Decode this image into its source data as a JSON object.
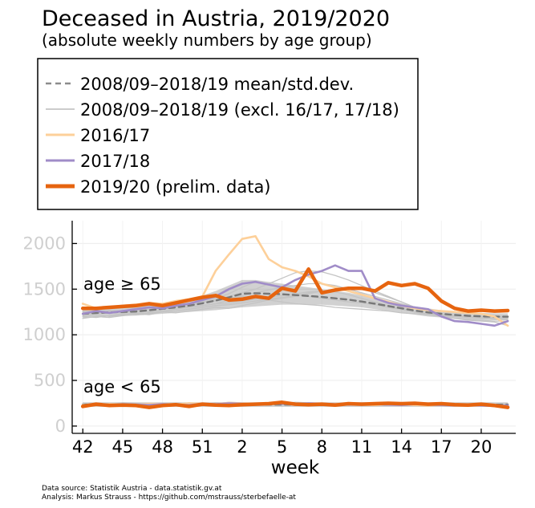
{
  "title": "Deceased in Austria, 2019/2020",
  "subtitle": "(absolute weekly numbers by age group)",
  "xlabel": "week",
  "annotations": {
    "old": "age ≥ 65",
    "young": "age < 65"
  },
  "caption": {
    "line1": "Data source: Statistik Austria - data.statistik.gv.at",
    "line2": "Analysis: Markus Strauss - https://github.com/mstrauss/sterbefaelle-at"
  },
  "legend": [
    {
      "label": "2008/09–2018/19 mean/std.dev.",
      "color": "#8c8c8c",
      "dashed": true,
      "width": 2.5
    },
    {
      "label": "2008/09–2018/19 (excl. 16/17, 17/18)",
      "color": "#cccccc",
      "dashed": false,
      "width": 2
    },
    {
      "label": "2016/17",
      "color": "#fdd09a",
      "dashed": false,
      "width": 3
    },
    {
      "label": "2017/18",
      "color": "#a08cc8",
      "dashed": false,
      "width": 3
    },
    {
      "label": "2019/20 (prelim. data)",
      "color": "#e6640f",
      "dashed": false,
      "width": 5
    }
  ],
  "chart_data": {
    "type": "line",
    "title": "Deceased in Austria, 2019/2020",
    "xlabel": "week",
    "ylabel": "",
    "xlim": [
      41.2,
      74.6
    ],
    "ylim": [
      -80,
      2250
    ],
    "x_tick_positions": [
      42,
      45,
      48,
      51,
      54,
      57,
      60,
      63,
      66,
      69,
      72
    ],
    "x_tick_labels": [
      "42",
      "45",
      "48",
      "51",
      "2",
      "5",
      "8",
      "11",
      "14",
      "17",
      "20"
    ],
    "y_ticks": [
      0,
      500,
      1000,
      1500,
      2000
    ],
    "grid": true,
    "legend_position": "top",
    "x": [
      42,
      43,
      44,
      45,
      46,
      47,
      48,
      49,
      50,
      51,
      52,
      53,
      54,
      55,
      56,
      57,
      58,
      59,
      60,
      61,
      62,
      63,
      64,
      65,
      66,
      67,
      68,
      69,
      70,
      71,
      72,
      73,
      74
    ],
    "band_old": {
      "lower": [
        1185,
        1195,
        1200,
        1205,
        1210,
        1220,
        1230,
        1240,
        1250,
        1260,
        1270,
        1285,
        1300,
        1310,
        1320,
        1330,
        1330,
        1330,
        1330,
        1320,
        1310,
        1300,
        1280,
        1260,
        1240,
        1220,
        1200,
        1190,
        1180,
        1170,
        1165,
        1160,
        1160
      ],
      "upper": [
        1275,
        1285,
        1290,
        1295,
        1305,
        1320,
        1340,
        1360,
        1390,
        1430,
        1480,
        1540,
        1600,
        1600,
        1580,
        1560,
        1540,
        1520,
        1500,
        1480,
        1460,
        1430,
        1400,
        1370,
        1340,
        1310,
        1290,
        1270,
        1255,
        1245,
        1240,
        1235,
        1235
      ]
    },
    "band_young": {
      "lower": [
        210,
        210,
        210,
        210,
        210,
        210,
        210,
        210,
        210,
        210,
        210,
        210,
        210,
        210,
        210,
        210,
        210,
        210,
        210,
        210,
        210,
        210,
        210,
        210,
        210,
        210,
        210,
        210,
        210,
        210,
        210,
        210,
        210
      ],
      "upper": [
        260,
        260,
        260,
        260,
        260,
        260,
        260,
        260,
        260,
        260,
        260,
        260,
        260,
        260,
        260,
        260,
        260,
        260,
        260,
        260,
        260,
        260,
        260,
        260,
        260,
        260,
        260,
        260,
        260,
        260,
        260,
        260,
        260
      ]
    },
    "series": [
      {
        "name": "2008/09–2018/19 mean/std.dev.",
        "group": "old",
        "style": "mean",
        "values": [
          1230,
          1240,
          1245,
          1250,
          1255,
          1270,
          1285,
          1300,
          1320,
          1345,
          1375,
          1410,
          1450,
          1455,
          1450,
          1445,
          1435,
          1425,
          1415,
          1400,
          1385,
          1365,
          1340,
          1315,
          1290,
          1265,
          1245,
          1230,
          1218,
          1208,
          1202,
          1198,
          1198
        ]
      },
      {
        "name": "2008/09–2018/19 mean/std.dev.",
        "group": "young",
        "style": "mean",
        "values": [
          235,
          235,
          235,
          235,
          235,
          235,
          235,
          235,
          235,
          235,
          235,
          235,
          235,
          235,
          235,
          235,
          235,
          235,
          235,
          235,
          235,
          235,
          235,
          235,
          235,
          235,
          235,
          235,
          235,
          235,
          235,
          235,
          235
        ]
      },
      {
        "name": "2008/09–2018/19 (excl. 16/17, 17/18)",
        "group": "old",
        "style": "year",
        "values": [
          1180,
          1200,
          1190,
          1210,
          1230,
          1220,
          1250,
          1240,
          1260,
          1280,
          1300,
          1290,
          1320,
          1350,
          1380,
          1400,
          1420,
          1450,
          1480,
          1500,
          1480,
          1450,
          1400,
          1350,
          1300,
          1250,
          1220,
          1200,
          1180,
          1170,
          1160,
          1150,
          1150
        ]
      },
      {
        "name": "2008/09–2018/19 (excl. 16/17, 17/18)",
        "group": "old",
        "style": "year",
        "values": [
          1260,
          1250,
          1270,
          1260,
          1280,
          1300,
          1290,
          1320,
          1340,
          1360,
          1380,
          1420,
          1460,
          1500,
          1560,
          1620,
          1680,
          1700,
          1690,
          1650,
          1600,
          1540,
          1480,
          1420,
          1360,
          1300,
          1260,
          1230,
          1210,
          1200,
          1190,
          1185,
          1180
        ]
      },
      {
        "name": "2008/09–2018/19 (excl. 16/17, 17/18)",
        "group": "old",
        "style": "year",
        "values": [
          1200,
          1190,
          1210,
          1230,
          1220,
          1240,
          1260,
          1280,
          1300,
          1320,
          1340,
          1380,
          1420,
          1400,
          1380,
          1360,
          1340,
          1330,
          1320,
          1300,
          1290,
          1280,
          1270,
          1260,
          1240,
          1230,
          1220,
          1210,
          1200,
          1190,
          1180,
          1170,
          1165
        ]
      },
      {
        "name": "2008/09–2018/19 (excl. 16/17, 17/18)",
        "group": "old",
        "style": "year",
        "values": [
          1240,
          1230,
          1250,
          1240,
          1260,
          1250,
          1280,
          1300,
          1320,
          1350,
          1400,
          1450,
          1520,
          1580,
          1560,
          1500,
          1450,
          1420,
          1400,
          1380,
          1360,
          1350,
          1330,
          1300,
          1280,
          1250,
          1230,
          1220,
          1210,
          1200,
          1200,
          1195,
          1190
        ]
      },
      {
        "name": "2008/09–2018/19 (excl. 16/17, 17/18)",
        "group": "old",
        "style": "year",
        "values": [
          1280,
          1270,
          1290,
          1300,
          1290,
          1310,
          1300,
          1330,
          1340,
          1360,
          1370,
          1400,
          1430,
          1460,
          1490,
          1520,
          1540,
          1560,
          1560,
          1540,
          1500,
          1460,
          1420,
          1380,
          1340,
          1300,
          1270,
          1250,
          1240,
          1230,
          1220,
          1210,
          1200
        ]
      },
      {
        "name": "2008/09–2018/19 (excl. 16/17, 17/18)",
        "group": "old",
        "style": "year",
        "values": [
          1210,
          1220,
          1200,
          1220,
          1240,
          1230,
          1250,
          1260,
          1280,
          1300,
          1320,
          1330,
          1350,
          1370,
          1390,
          1410,
          1430,
          1460,
          1480,
          1500,
          1520,
          1500,
          1460,
          1410,
          1360,
          1300,
          1250,
          1210,
          1180,
          1160,
          1150,
          1140,
          1100
        ]
      },
      {
        "name": "2008/09–2018/19 (excl. 16/17, 17/18)",
        "group": "old",
        "style": "year",
        "values": [
          1250,
          1240,
          1260,
          1250,
          1270,
          1280,
          1290,
          1300,
          1310,
          1320,
          1340,
          1350,
          1370,
          1390,
          1410,
          1430,
          1450,
          1470,
          1480,
          1470,
          1440,
          1400,
          1360,
          1320,
          1280,
          1250,
          1230,
          1220,
          1210,
          1200,
          1190,
          1185,
          1180
        ]
      },
      {
        "name": "2008/09–2018/19 (excl. 16/17, 17/18)",
        "group": "young",
        "style": "year",
        "values": [
          240,
          230,
          250,
          235,
          245,
          240,
          230,
          250,
          245,
          240,
          255,
          250,
          245,
          240,
          250,
          255,
          245,
          240,
          250,
          245,
          240,
          250,
          255,
          245,
          240,
          235,
          245,
          240,
          235,
          245,
          240,
          235,
          240
        ]
      },
      {
        "name": "2008/09–2018/19 (excl. 16/17, 17/18)",
        "group": "young",
        "style": "year",
        "values": [
          225,
          235,
          220,
          240,
          230,
          225,
          240,
          235,
          230,
          245,
          240,
          230,
          240,
          250,
          235,
          230,
          245,
          240,
          235,
          230,
          240,
          235,
          230,
          240,
          235,
          225,
          230,
          235,
          230,
          225,
          230,
          235,
          228
        ]
      },
      {
        "name": "2008/09–2018/19 (excl. 16/17, 17/18)",
        "group": "young",
        "style": "year",
        "values": [
          250,
          245,
          240,
          255,
          250,
          245,
          250,
          240,
          255,
          250,
          245,
          260,
          255,
          250,
          245,
          250,
          260,
          255,
          250,
          245,
          250,
          255,
          250,
          245,
          250,
          245,
          240,
          250,
          245,
          240,
          245,
          240,
          245
        ]
      },
      {
        "name": "2016/17",
        "group": "old",
        "style": "y1617",
        "values": [
          1340,
          1290,
          1300,
          1320,
          1330,
          1350,
          1340,
          1370,
          1390,
          1420,
          1700,
          1880,
          2050,
          2080,
          1830,
          1740,
          1700,
          1640,
          1560,
          1520,
          1480,
          1440,
          1400,
          1360,
          1320,
          1290,
          1270,
          1260,
          1250,
          1240,
          1230,
          1200,
          1100
        ]
      },
      {
        "name": "2016/17",
        "group": "young",
        "style": "y1617",
        "values": [
          230,
          225,
          240,
          235,
          230,
          245,
          240,
          235,
          250,
          245,
          240,
          255,
          250,
          245,
          240,
          250,
          245,
          240,
          235,
          245,
          240,
          235,
          230,
          240,
          235,
          230,
          225,
          235,
          230,
          225,
          230,
          225,
          220
        ]
      },
      {
        "name": "2017/18",
        "group": "old",
        "style": "y1718",
        "values": [
          1230,
          1260,
          1240,
          1260,
          1280,
          1300,
          1290,
          1320,
          1340,
          1380,
          1420,
          1500,
          1560,
          1580,
          1550,
          1520,
          1600,
          1660,
          1700,
          1760,
          1700,
          1700,
          1400,
          1350,
          1320,
          1300,
          1280,
          1200,
          1150,
          1140,
          1120,
          1100,
          1150
        ]
      },
      {
        "name": "2017/18",
        "group": "young",
        "style": "y1718",
        "values": [
          220,
          230,
          225,
          240,
          235,
          230,
          240,
          235,
          230,
          245,
          240,
          250,
          245,
          240,
          250,
          245,
          240,
          250,
          245,
          240,
          235,
          245,
          240,
          235,
          230,
          240,
          235,
          230,
          225,
          230,
          225,
          220,
          225
        ]
      },
      {
        "name": "2019/20 (prelim. data)",
        "group": "old",
        "style": "y1920",
        "values": [
          1290,
          1290,
          1300,
          1310,
          1320,
          1340,
          1320,
          1350,
          1380,
          1410,
          1430,
          1380,
          1390,
          1420,
          1400,
          1510,
          1480,
          1720,
          1460,
          1490,
          1510,
          1510,
          1480,
          1570,
          1540,
          1560,
          1510,
          1370,
          1290,
          1260,
          1270,
          1260,
          1265
        ]
      },
      {
        "name": "2019/20 (prelim. data)",
        "group": "young",
        "style": "y1920",
        "values": [
          215,
          240,
          225,
          230,
          225,
          205,
          225,
          235,
          215,
          240,
          230,
          225,
          235,
          240,
          245,
          260,
          240,
          235,
          240,
          230,
          245,
          240,
          245,
          250,
          245,
          250,
          240,
          245,
          235,
          230,
          240,
          225,
          205
        ]
      }
    ]
  }
}
